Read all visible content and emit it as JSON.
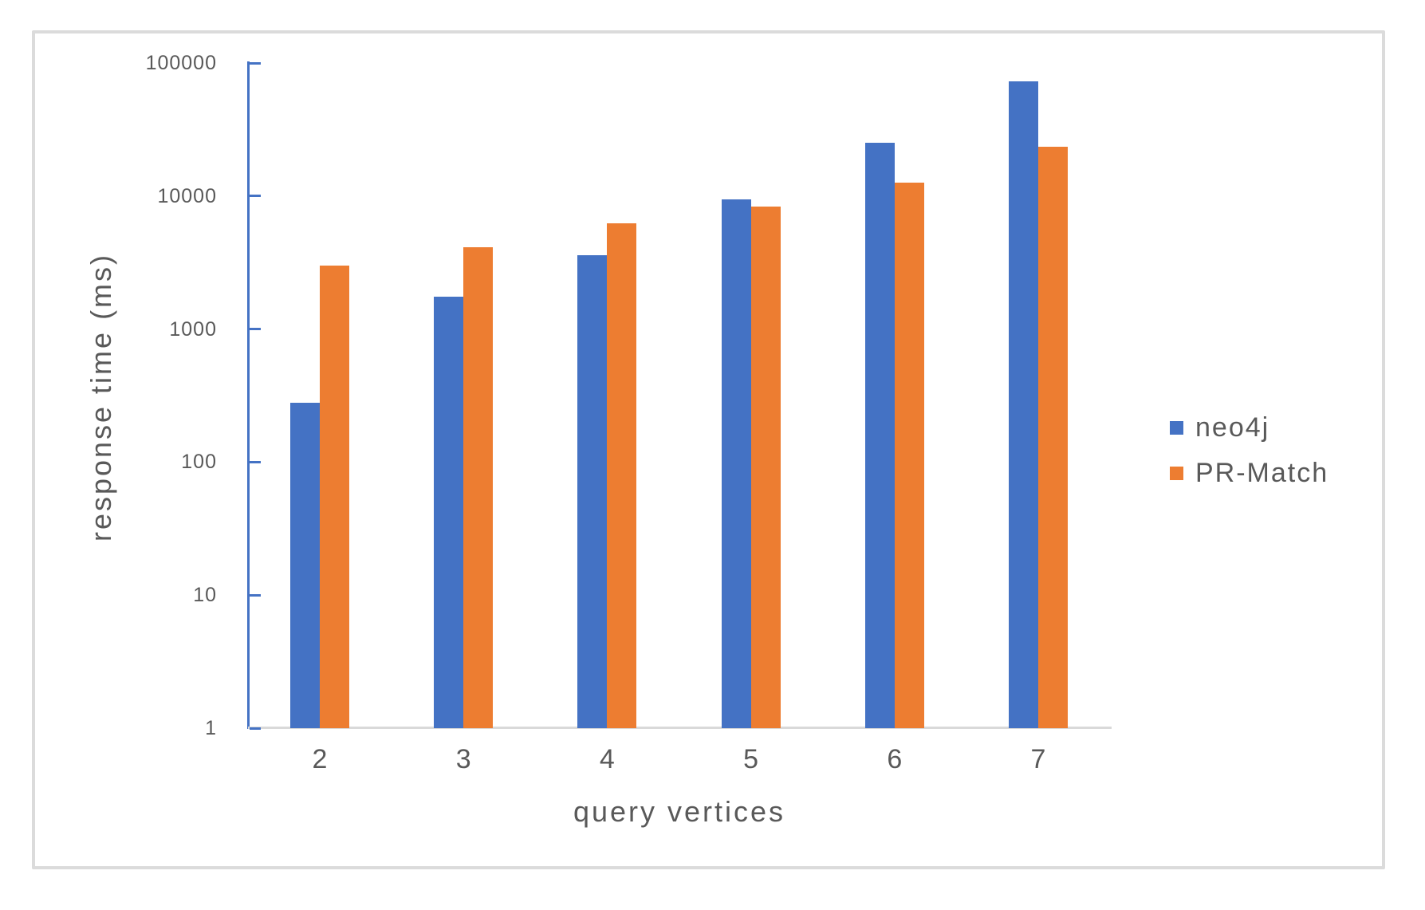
{
  "chart_data": {
    "type": "bar",
    "title": "",
    "xlabel": "query vertices",
    "ylabel": "response time (ms)",
    "categories": [
      "2",
      "3",
      "4",
      "5",
      "6",
      "7"
    ],
    "series": [
      {
        "name": "neo4j",
        "color": "#4472C4",
        "values": [
          280,
          1750,
          3600,
          9500,
          25000,
          73000
        ]
      },
      {
        "name": "PR-Match",
        "color": "#ED7D31",
        "values": [
          3000,
          4100,
          6200,
          8300,
          12600,
          23500
        ]
      }
    ],
    "y_scale": "log10",
    "ylim": [
      1,
      100000
    ],
    "y_ticks": [
      100000,
      10000,
      1000,
      100,
      10,
      1
    ],
    "y_tick_labels": [
      "100000",
      "10000",
      "1000",
      "100",
      "10",
      "1"
    ],
    "grid": false,
    "legend_position": "right",
    "colors": {
      "axis_line": "#4472C4",
      "baseline": "#d9d9d9",
      "frame_border": "#dbdbdb",
      "text": "#595959"
    }
  }
}
